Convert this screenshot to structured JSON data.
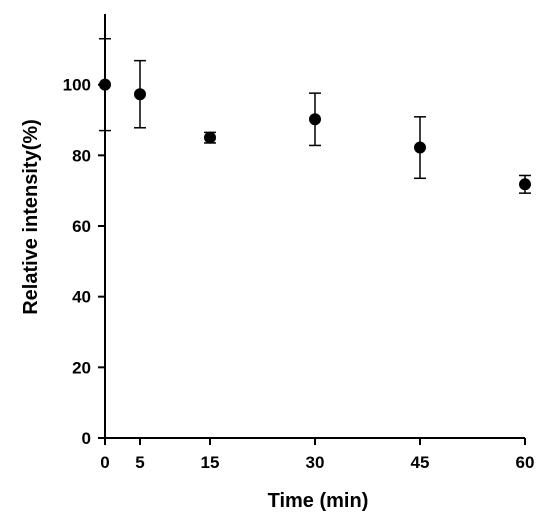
{
  "chart_data": {
    "type": "scatter",
    "xlabel": "Time (min)",
    "ylabel": "Relative intensity(%)",
    "xlim": [
      0,
      60
    ],
    "ylim": [
      0,
      120
    ],
    "x_ticks": [
      0,
      5,
      15,
      30,
      45,
      60
    ],
    "y_ticks": [
      0,
      20,
      40,
      60,
      80,
      100
    ],
    "grid": false,
    "marker_color": "#000000",
    "series": [
      {
        "x": [
          0,
          5,
          15,
          30,
          45,
          60
        ],
        "y": [
          100,
          97.3,
          85,
          90.2,
          82.2,
          71.8
        ],
        "error": [
          13,
          9.5,
          1.5,
          7.4,
          8.7,
          2.5
        ]
      }
    ]
  }
}
